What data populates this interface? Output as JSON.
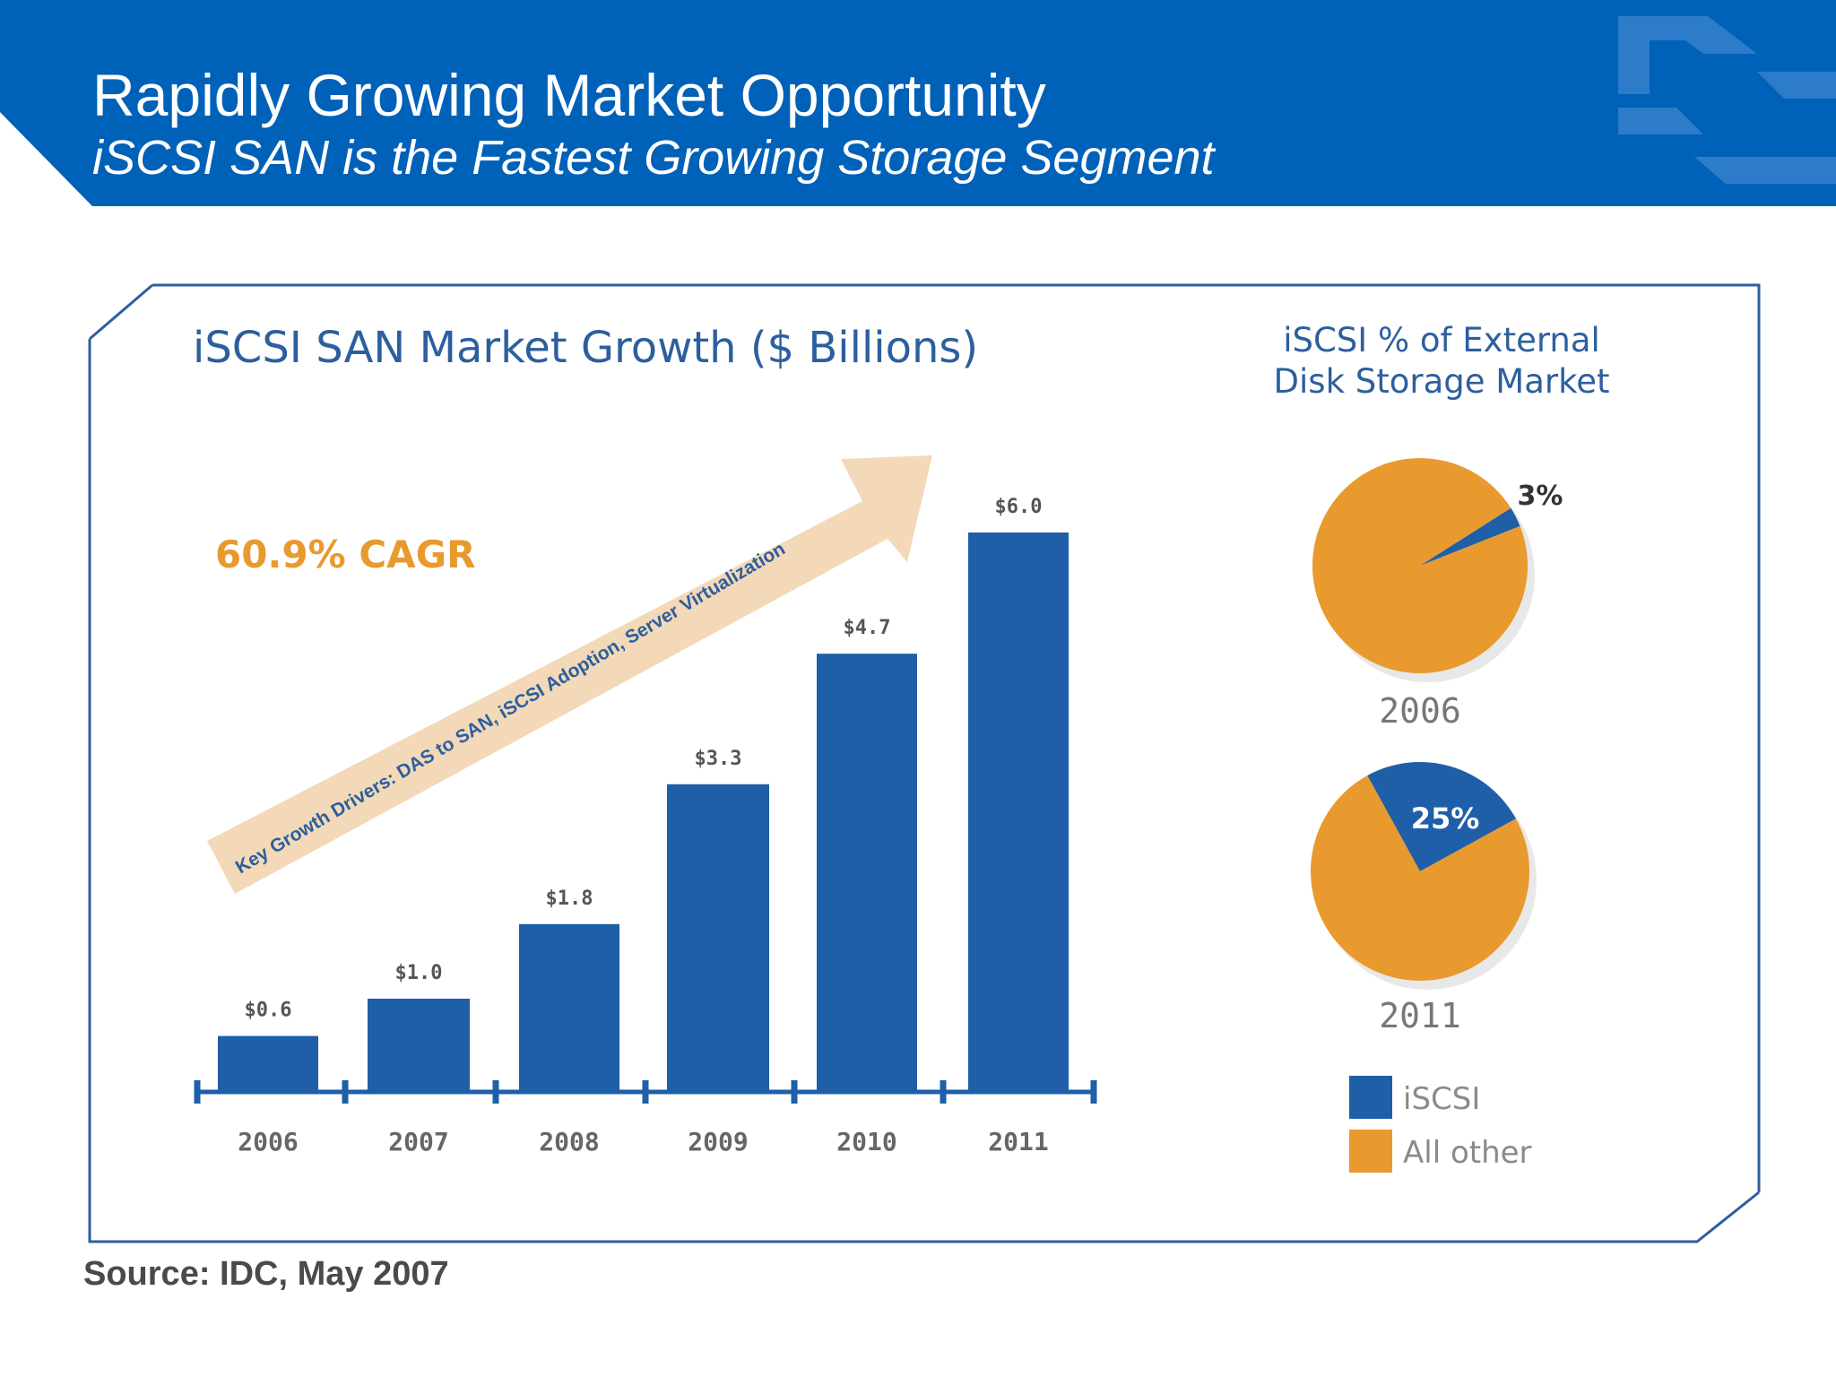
{
  "slide": {
    "title": "Rapidly Growing Market Opportunity",
    "subtitle": "iSCSI SAN is the Fastest Growing Storage Segment",
    "source": "Source: IDC, May 2007"
  },
  "colors": {
    "header_blue": "#0061b8",
    "bar_blue": "#1e5fa8",
    "other_orange": "#e89a2e",
    "title_blue": "#2c5f9e",
    "cagr_orange": "#e89a2e",
    "arrow_peach": "#f3d9b8"
  },
  "annotations": {
    "cagr": "60.9% CAGR",
    "drivers": "Key Growth Drivers: DAS to SAN, iSCSI Adoption, Server Virtualization"
  },
  "chart_data": [
    {
      "type": "bar",
      "title": "iSCSI SAN Market Growth ($ Billions)",
      "categories": [
        "2006",
        "2007",
        "2008",
        "2009",
        "2010",
        "2011"
      ],
      "values": [
        0.6,
        1.0,
        1.8,
        3.3,
        4.7,
        6.0
      ],
      "data_labels": [
        "$0.6",
        "$1.0",
        "$1.8",
        "$3.3",
        "$4.7",
        "$6.0"
      ],
      "ylim": [
        0,
        6.0
      ],
      "grid": false
    },
    {
      "type": "pie",
      "title": "iSCSI % of External Disk Storage Market",
      "pies": [
        {
          "label": "2006",
          "slices": [
            {
              "name": "iSCSI",
              "value": 3,
              "label": "3%"
            },
            {
              "name": "All other",
              "value": 97
            }
          ]
        },
        {
          "label": "2011",
          "slices": [
            {
              "name": "iSCSI",
              "value": 25,
              "label": "25%"
            },
            {
              "name": "All other",
              "value": 75
            }
          ]
        }
      ],
      "legend": [
        "iSCSI",
        "All other"
      ],
      "legend_position": "bottom"
    }
  ]
}
